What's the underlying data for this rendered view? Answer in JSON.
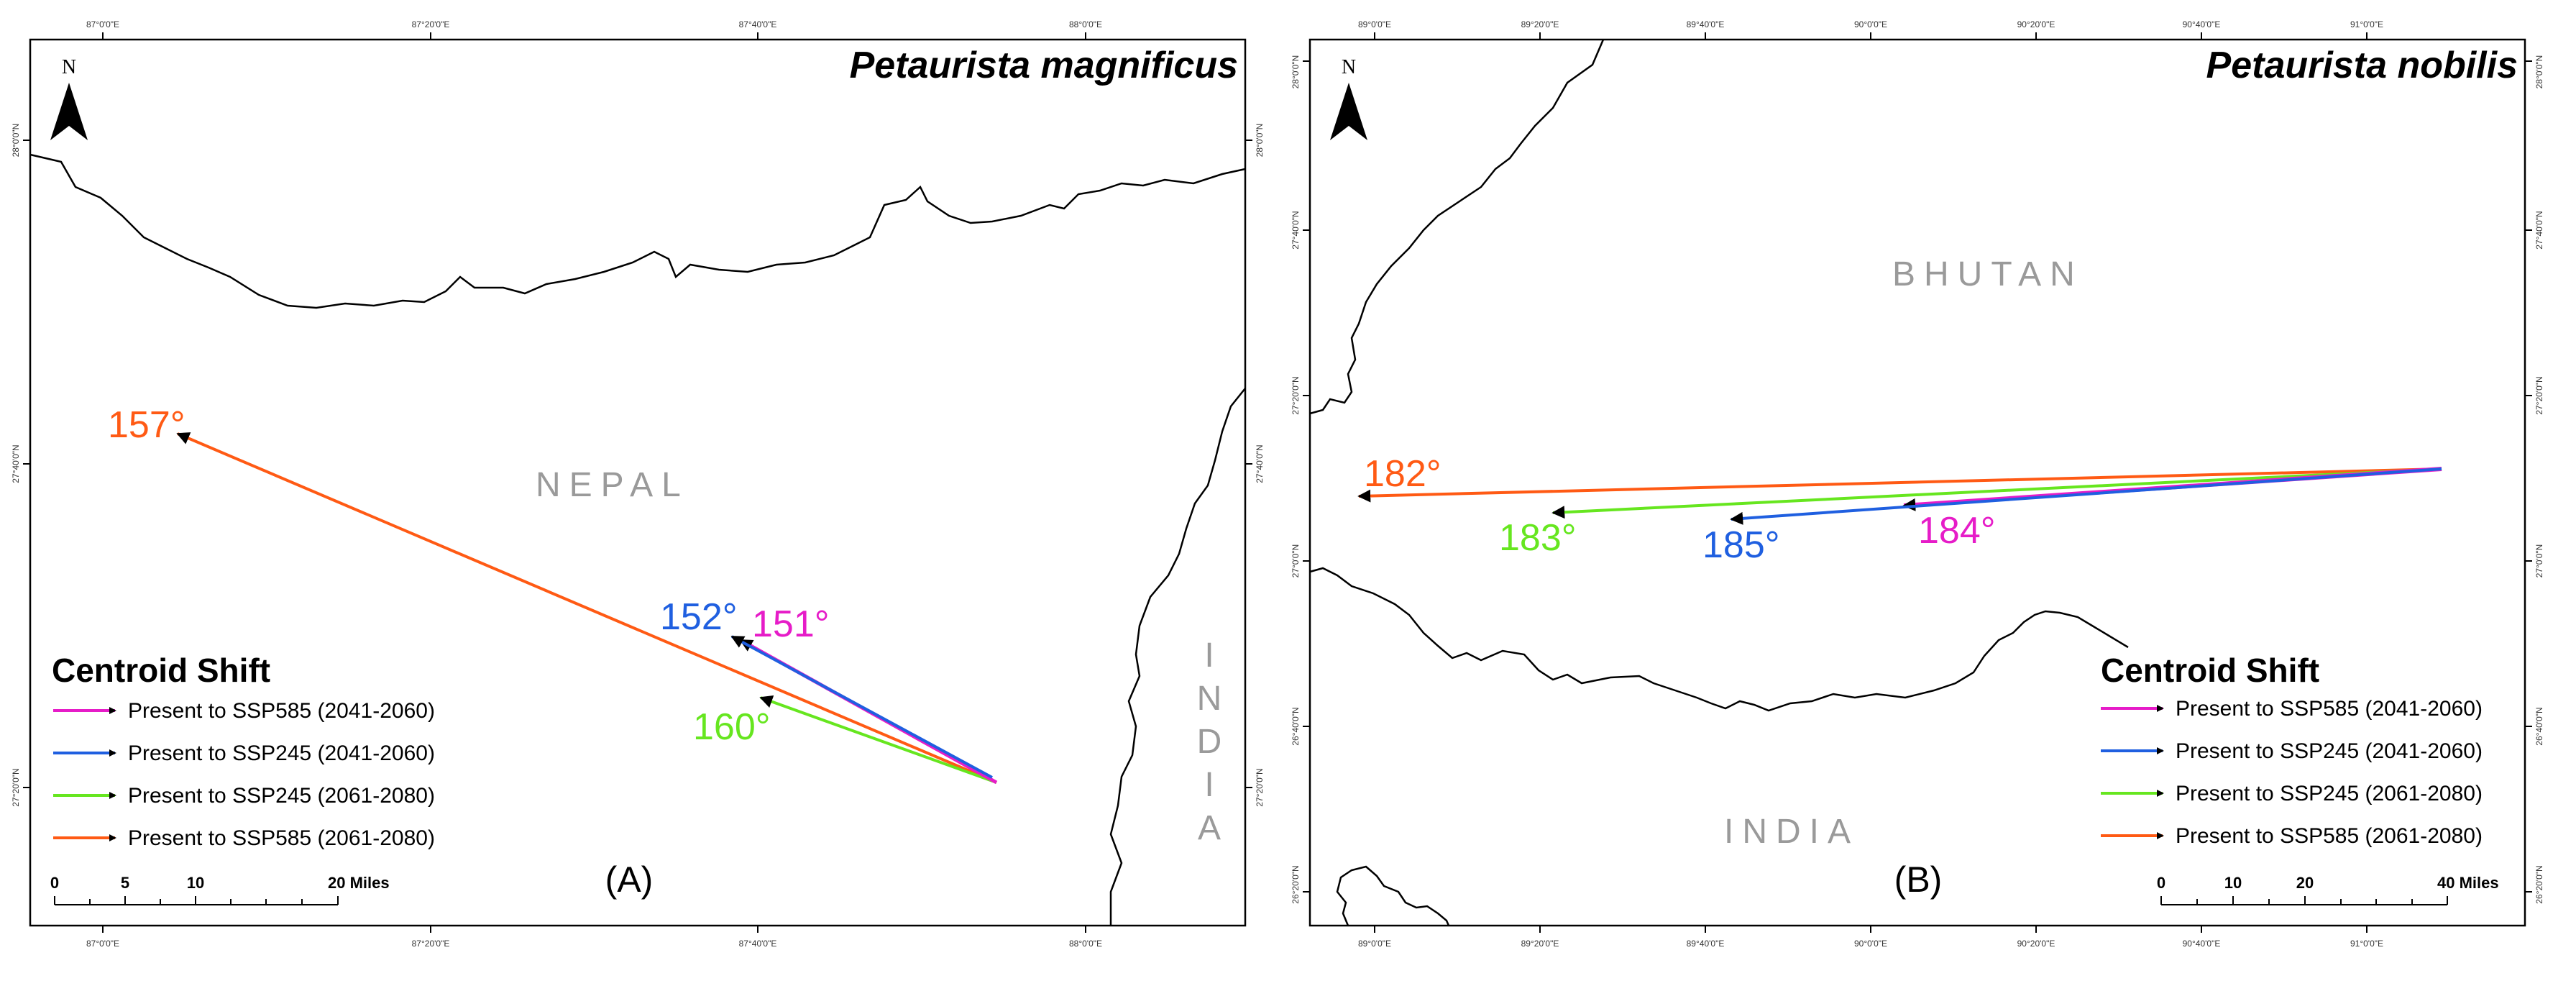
{
  "colors": {
    "ssp585_2041": "#e61cc8",
    "ssp245_2041": "#1f5fe0",
    "ssp245_2061": "#66e61f",
    "ssp585_2061": "#ff5a14",
    "country_label": "#9a9a9a"
  },
  "panels": [
    {
      "title": "Petaurista magnificus",
      "panel_label": "(A)",
      "north_label": "N",
      "countries": [
        "NEPAL",
        "I",
        "N",
        "D",
        "I",
        "A"
      ],
      "top_ticks": [
        "87°0'0\"E",
        "87°20'0\"E",
        "87°40'0\"E",
        "88°0'0\"E"
      ],
      "bottom_ticks": [
        "87°0'0\"E",
        "87°20'0\"E",
        "87°40'0\"E",
        "88°0'0\"E"
      ],
      "left_ticks": [
        "28°0'0\"N",
        "27°40'0\"N",
        "27°20'0\"N"
      ],
      "right_ticks": [
        "28°0'0\"N",
        "27°40'0\"N",
        "27°20'0\"N"
      ],
      "angles": {
        "ssp585_2061": "157°",
        "ssp245_2041": "152°",
        "ssp585_2041": "151°",
        "ssp245_2061": "160°"
      },
      "legend": {
        "title": "Centroid Shift",
        "items": [
          "Present to SSP585 (2041-2060)",
          "Present to SSP245 (2041-2060)",
          "Present to SSP245 (2061-2080)",
          "Present to SSP585 (2061-2080)"
        ]
      },
      "scale": {
        "labels": [
          "0",
          "5",
          "10",
          "20 Miles"
        ]
      }
    },
    {
      "title": "Petaurista nobilis",
      "panel_label": "(B)",
      "north_label": "N",
      "countries": [
        "BHUTAN",
        "INDIA"
      ],
      "top_ticks": [
        "89°0'0\"E",
        "89°20'0\"E",
        "89°40'0\"E",
        "90°0'0\"E",
        "90°20'0\"E",
        "90°40'0\"E",
        "91°0'0\"E"
      ],
      "bottom_ticks": [
        "89°0'0\"E",
        "89°20'0\"E",
        "89°40'0\"E",
        "90°0'0\"E",
        "90°20'0\"E",
        "90°40'0\"E",
        "91°0'0\"E"
      ],
      "left_ticks": [
        "28°0'0\"N",
        "27°40'0\"N",
        "27°20'0\"N",
        "27°0'0\"N",
        "26°40'0\"N",
        "26°20'0\"N"
      ],
      "right_ticks": [
        "28°0'0\"N",
        "27°40'0\"N",
        "27°20'0\"N",
        "27°0'0\"N",
        "26°40'0\"N",
        "26°20'0\"N"
      ],
      "angles": {
        "ssp585_2061": "182°",
        "ssp245_2061": "183°",
        "ssp245_2041": "185°",
        "ssp585_2041": "184°"
      },
      "legend": {
        "title": "Centroid Shift",
        "items": [
          "Present to SSP585 (2041-2060)",
          "Present to SSP245 (2041-2060)",
          "Present to SSP245 (2061-2080)",
          "Present to SSP585 (2061-2080)"
        ]
      },
      "scale": {
        "labels": [
          "0",
          "10",
          "20",
          "40 Miles"
        ]
      }
    }
  ]
}
